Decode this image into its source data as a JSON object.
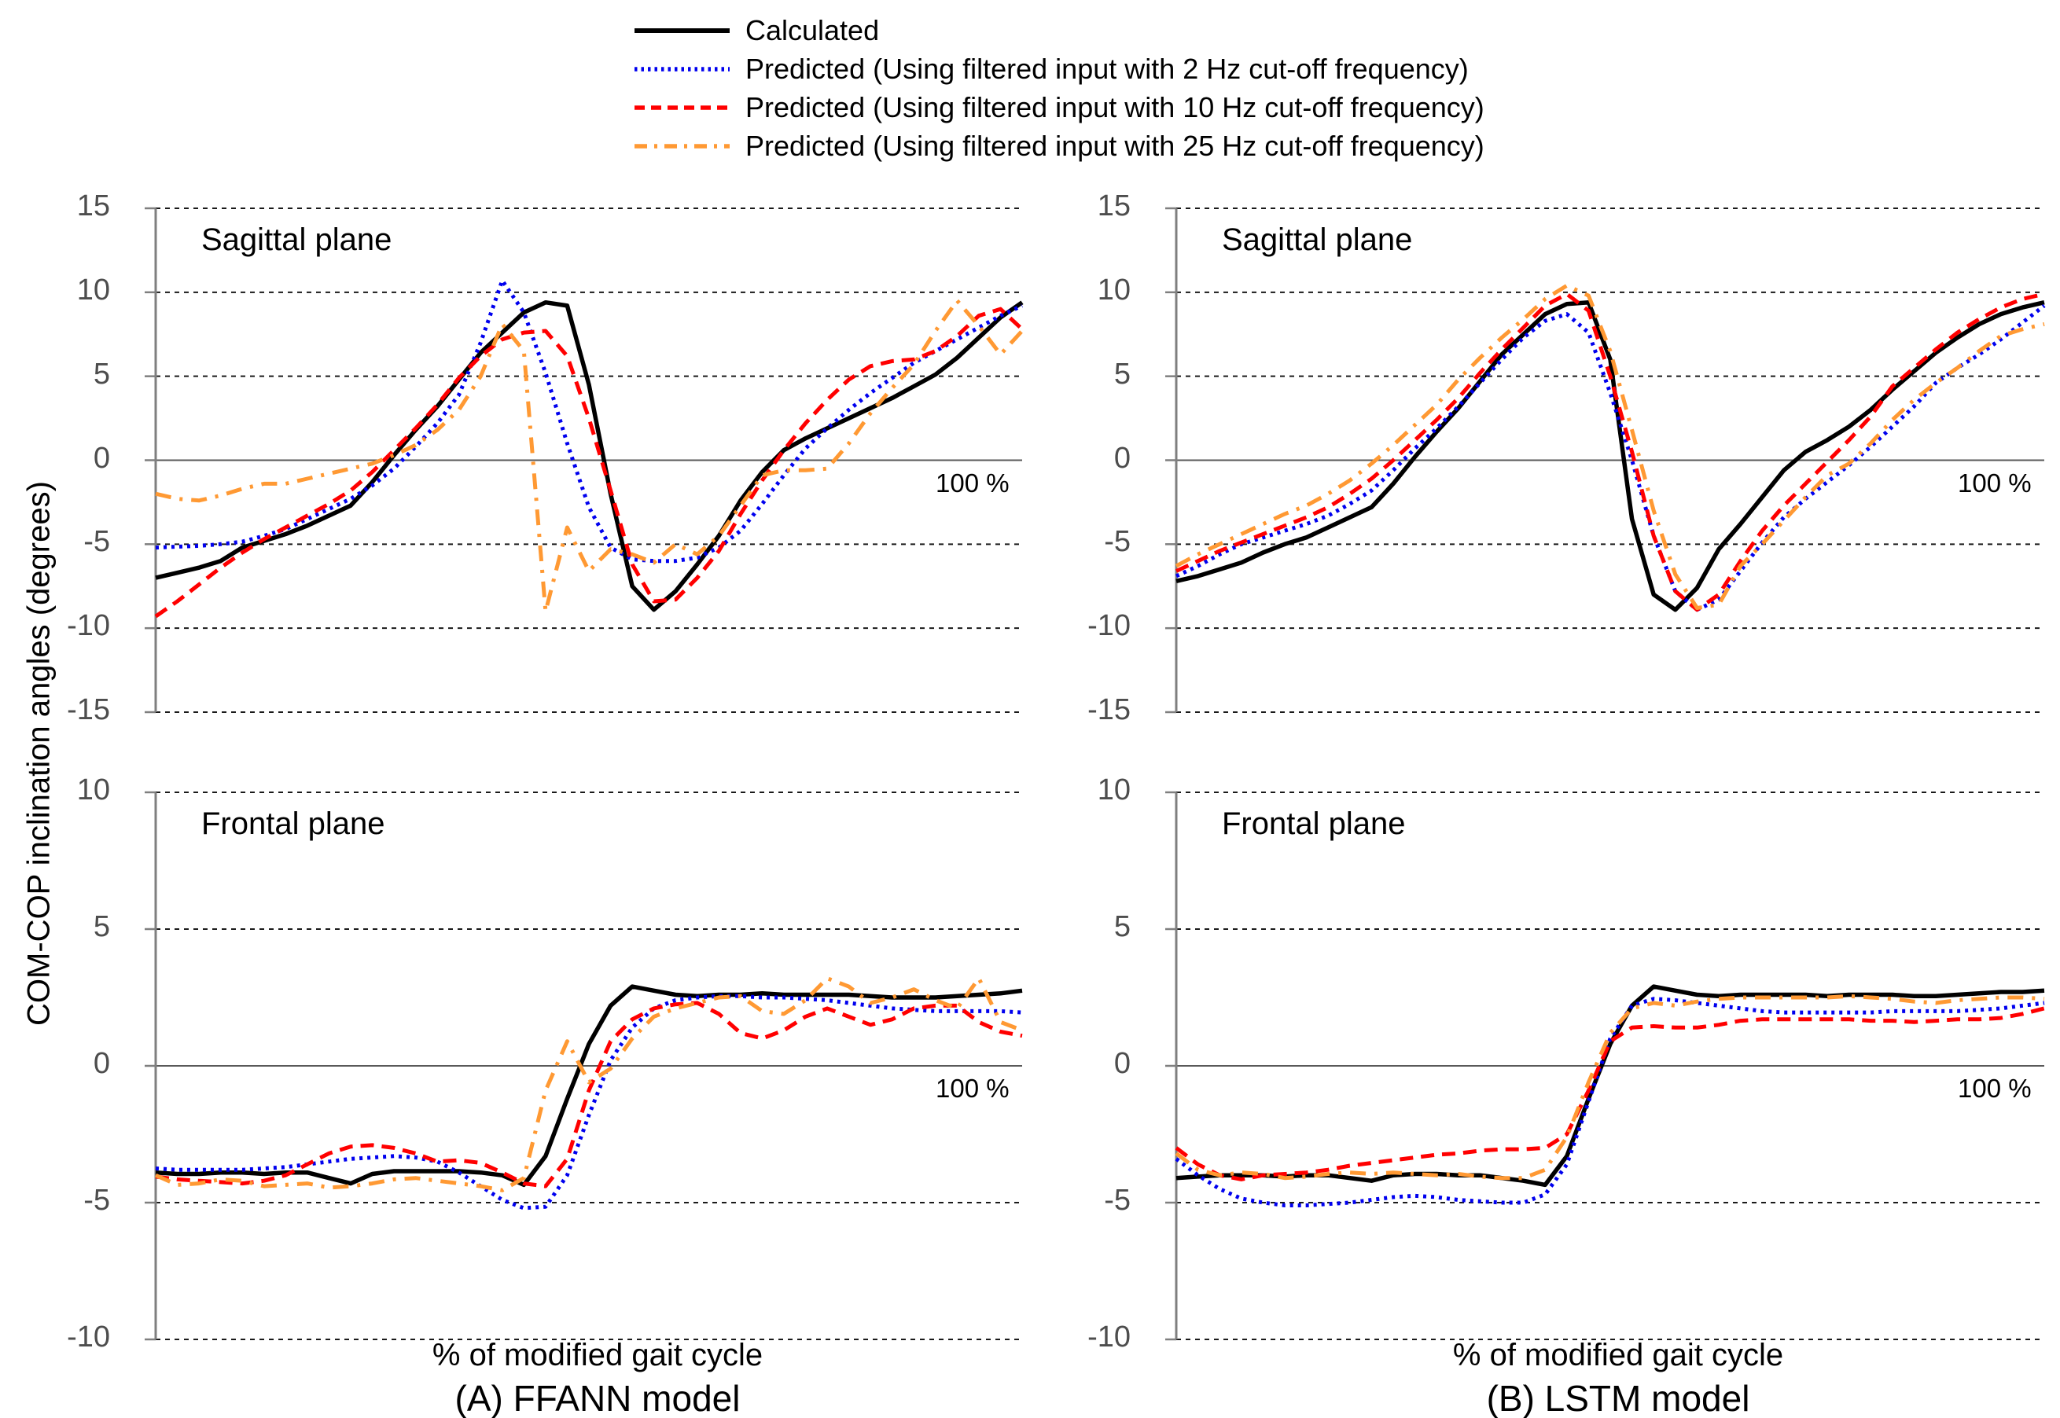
{
  "figure": {
    "y_axis_label": "COM-COP inclination angles (degrees)",
    "x_axis_label": "% of modified gait cycle",
    "panel_a_caption": "(A) FFANN model",
    "panel_b_caption": "(B) LSTM model",
    "end_label": "100 %"
  },
  "colors": {
    "calculated": "#000000",
    "predicted_2hz": "#0000ee",
    "predicted_10hz": "#ff0000",
    "predicted_25hz": "#ff9933",
    "axis": "#7f7f7f",
    "gridline": "#1a1a1a",
    "zero_line": "#595959",
    "tick_text": "#4d4d4d"
  },
  "legend": [
    {
      "label": "Calculated",
      "color": "#000000",
      "style": "solid"
    },
    {
      "label": "Predicted (Using filtered input with 2 Hz cut-off frequency)",
      "color": "#0000ee",
      "style": "dotted"
    },
    {
      "label": "Predicted (Using filtered input with 10 Hz cut-off frequency)",
      "color": "#ff0000",
      "style": "dashed"
    },
    {
      "label": "Predicted (Using filtered input with 25 Hz cut-off frequency)",
      "color": "#ff9933",
      "style": "dashdot"
    }
  ],
  "chart_data": {
    "type": "line",
    "x_label": "% of modified gait cycle",
    "x_range_percent": [
      0,
      100
    ],
    "x_percent": [
      0,
      2.5,
      5,
      7.5,
      10,
      12.5,
      15,
      17.5,
      20,
      22.5,
      25,
      27.5,
      30,
      32.5,
      35,
      37.5,
      40,
      42.5,
      45,
      47.5,
      50,
      52.5,
      55,
      57.5,
      60,
      62.5,
      65,
      67.5,
      70,
      72.5,
      75,
      77.5,
      80,
      82.5,
      85,
      87.5,
      90,
      92.5,
      95,
      97.5,
      100
    ],
    "panels": [
      {
        "id": "ffann-sagittal",
        "model": "FFANN",
        "title": "Sagittal plane",
        "ylim": [
          -15,
          15
        ],
        "yticks": [
          15,
          10,
          5,
          0,
          -5,
          -10,
          -15
        ],
        "series": [
          {
            "name": "Calculated",
            "key": "calculated",
            "values": [
              -7.0,
              -6.7,
              -6.4,
              -6.0,
              -5.2,
              -4.8,
              -4.4,
              -3.9,
              -3.3,
              -2.7,
              -1.3,
              0.3,
              1.8,
              3.2,
              4.8,
              6.4,
              7.6,
              8.8,
              9.4,
              9.2,
              4.5,
              -2.0,
              -7.5,
              -8.9,
              -7.8,
              -6.2,
              -4.5,
              -2.4,
              -0.7,
              0.6,
              1.3,
              1.9,
              2.5,
              3.1,
              3.7,
              4.4,
              5.1,
              6.1,
              7.3,
              8.5,
              9.4
            ]
          },
          {
            "name": "Predicted 2 Hz",
            "key": "predicted_2hz",
            "values": [
              -5.2,
              -5.15,
              -5.1,
              -5.0,
              -4.85,
              -4.5,
              -4.1,
              -3.5,
              -2.9,
              -2.3,
              -1.5,
              -0.5,
              0.8,
              2.2,
              3.9,
              7.0,
              10.7,
              8.8,
              5.2,
              1.0,
              -2.8,
              -5.2,
              -5.9,
              -6.0,
              -6.0,
              -5.8,
              -5.2,
              -4.2,
              -2.6,
              -0.9,
              0.7,
              1.9,
              3.0,
              4.0,
              4.9,
              5.8,
              6.5,
              7.2,
              7.9,
              8.6,
              9.2
            ]
          },
          {
            "name": "Predicted 10 Hz",
            "key": "predicted_10hz",
            "values": [
              -9.3,
              -8.4,
              -7.4,
              -6.4,
              -5.5,
              -4.7,
              -4.0,
              -3.3,
              -2.6,
              -1.8,
              -0.7,
              0.6,
              1.9,
              3.3,
              4.9,
              6.2,
              7.2,
              7.6,
              7.7,
              6.2,
              2.5,
              -1.8,
              -6.2,
              -8.4,
              -8.3,
              -7.0,
              -5.4,
              -3.2,
              -1.2,
              0.6,
              2.2,
              3.6,
              4.8,
              5.6,
              5.9,
              6.0,
              6.5,
              7.4,
              8.6,
              9.0,
              7.8
            ]
          },
          {
            "name": "Predicted 25 Hz",
            "key": "predicted_25hz",
            "values": [
              -2.0,
              -2.3,
              -2.4,
              -2.1,
              -1.7,
              -1.4,
              -1.4,
              -1.1,
              -0.8,
              -0.5,
              -0.2,
              0.3,
              0.9,
              1.8,
              3.0,
              5.0,
              8.1,
              6.5,
              -9.0,
              -4.0,
              -6.6,
              -5.3,
              -5.6,
              -6.1,
              -5.0,
              -5.6,
              -4.5,
              -2.7,
              -0.9,
              -0.6,
              -0.6,
              -0.5,
              1.0,
              2.8,
              4.3,
              5.7,
              7.7,
              9.5,
              8.0,
              6.3,
              7.7
            ]
          }
        ]
      },
      {
        "id": "lstm-sagittal",
        "model": "LSTM",
        "title": "Sagittal plane",
        "ylim": [
          -15,
          15
        ],
        "yticks": [
          15,
          10,
          5,
          0,
          -5,
          -10,
          -15
        ],
        "series": [
          {
            "name": "Calculated",
            "key": "calculated",
            "values": [
              -7.2,
              -6.9,
              -6.5,
              -6.1,
              -5.5,
              -5.0,
              -4.6,
              -4.0,
              -3.4,
              -2.8,
              -1.4,
              0.2,
              1.7,
              3.1,
              4.7,
              6.3,
              7.5,
              8.7,
              9.3,
              9.4,
              6.0,
              -3.5,
              -8.0,
              -8.9,
              -7.6,
              -5.3,
              -3.8,
              -2.2,
              -0.6,
              0.5,
              1.2,
              2.0,
              3.0,
              4.2,
              5.3,
              6.4,
              7.3,
              8.1,
              8.7,
              9.1,
              9.4
            ]
          },
          {
            "name": "Predicted 2 Hz",
            "key": "predicted_2hz",
            "values": [
              -6.9,
              -6.3,
              -5.6,
              -5.0,
              -4.6,
              -4.2,
              -3.8,
              -3.3,
              -2.6,
              -1.8,
              -0.6,
              0.7,
              1.9,
              3.2,
              4.6,
              6.0,
              7.3,
              8.3,
              8.7,
              7.6,
              4.0,
              0.0,
              -4.5,
              -7.8,
              -8.9,
              -8.3,
              -6.6,
              -4.9,
              -3.4,
              -2.3,
              -1.3,
              -0.3,
              0.8,
              2.0,
              3.2,
              4.6,
              5.5,
              6.3,
              7.2,
              8.2,
              9.2
            ]
          },
          {
            "name": "Predicted 10 Hz",
            "key": "predicted_10hz",
            "values": [
              -6.6,
              -6.0,
              -5.4,
              -4.9,
              -4.4,
              -3.9,
              -3.4,
              -2.8,
              -2.0,
              -1.1,
              0.0,
              1.2,
              2.4,
              3.7,
              5.2,
              6.6,
              7.9,
              9.2,
              9.9,
              8.9,
              5.0,
              0.5,
              -4.5,
              -7.8,
              -8.9,
              -8.0,
              -6.0,
              -4.2,
              -2.7,
              -1.4,
              -0.1,
              1.2,
              2.6,
              4.4,
              5.5,
              6.6,
              7.6,
              8.4,
              9.1,
              9.6,
              9.9
            ]
          },
          {
            "name": "Predicted 25 Hz",
            "key": "predicted_25hz",
            "values": [
              -6.3,
              -5.6,
              -5.0,
              -4.4,
              -3.8,
              -3.2,
              -2.7,
              -2.0,
              -1.2,
              -0.2,
              0.9,
              2.1,
              3.3,
              4.8,
              6.1,
              7.3,
              8.4,
              9.6,
              10.4,
              9.8,
              6.5,
              1.8,
              -3.0,
              -6.8,
              -8.8,
              -8.6,
              -6.3,
              -5.0,
              -3.6,
              -2.2,
              -0.9,
              -0.2,
              1.0,
              2.4,
              3.6,
              4.6,
              5.5,
              6.5,
              7.4,
              7.8,
              8.1
            ]
          }
        ]
      },
      {
        "id": "ffann-frontal",
        "model": "FFANN",
        "title": "Frontal plane",
        "ylim": [
          -10,
          10
        ],
        "yticks": [
          10,
          5,
          0,
          -5,
          -10
        ],
        "series": [
          {
            "name": "Calculated",
            "key": "calculated",
            "values": [
              -3.9,
              -3.95,
              -3.95,
              -3.9,
              -3.9,
              -3.95,
              -3.9,
              -3.9,
              -4.1,
              -4.3,
              -3.95,
              -3.85,
              -3.85,
              -3.85,
              -3.85,
              -3.9,
              -4.0,
              -4.35,
              -3.3,
              -1.2,
              0.8,
              2.2,
              2.9,
              2.75,
              2.6,
              2.55,
              2.6,
              2.6,
              2.65,
              2.6,
              2.6,
              2.6,
              2.6,
              2.55,
              2.5,
              2.5,
              2.5,
              2.55,
              2.6,
              2.65,
              2.75
            ]
          },
          {
            "name": "Predicted 2 Hz",
            "key": "predicted_2hz",
            "values": [
              -3.75,
              -3.8,
              -3.8,
              -3.8,
              -3.8,
              -3.75,
              -3.7,
              -3.6,
              -3.5,
              -3.4,
              -3.35,
              -3.3,
              -3.35,
              -3.5,
              -3.9,
              -4.4,
              -4.9,
              -5.2,
              -5.15,
              -4.0,
              -1.8,
              0.2,
              1.4,
              2.1,
              2.4,
              2.5,
              2.55,
              2.55,
              2.5,
              2.5,
              2.45,
              2.4,
              2.3,
              2.2,
              2.1,
              2.05,
              2.0,
              2.0,
              2.0,
              2.0,
              1.95
            ]
          },
          {
            "name": "Predicted 10 Hz",
            "key": "predicted_10hz",
            "values": [
              -4.05,
              -4.15,
              -4.2,
              -4.25,
              -4.3,
              -4.2,
              -4.0,
              -3.6,
              -3.2,
              -2.95,
              -2.9,
              -3.0,
              -3.2,
              -3.5,
              -3.45,
              -3.55,
              -3.9,
              -4.3,
              -4.4,
              -3.4,
              -0.9,
              0.9,
              1.7,
              2.1,
              2.25,
              2.3,
              1.9,
              1.2,
              1.0,
              1.3,
              1.8,
              2.1,
              1.8,
              1.5,
              1.7,
              2.1,
              2.2,
              2.2,
              1.6,
              1.25,
              1.1
            ]
          },
          {
            "name": "Predicted 25 Hz",
            "key": "predicted_25hz",
            "values": [
              -4.0,
              -4.35,
              -4.3,
              -4.15,
              -4.2,
              -4.4,
              -4.35,
              -4.3,
              -4.45,
              -4.4,
              -4.3,
              -4.15,
              -4.1,
              -4.2,
              -4.3,
              -4.4,
              -4.55,
              -4.1,
              -0.9,
              0.9,
              -0.6,
              -0.1,
              1.0,
              1.8,
              2.1,
              2.3,
              2.5,
              2.55,
              2.0,
              1.9,
              2.4,
              3.2,
              2.9,
              2.3,
              2.5,
              2.8,
              2.4,
              2.1,
              3.2,
              1.6,
              1.3
            ]
          }
        ]
      },
      {
        "id": "lstm-frontal",
        "model": "LSTM",
        "title": "Frontal plane",
        "ylim": [
          -10,
          10
        ],
        "yticks": [
          10,
          5,
          0,
          -5,
          -10
        ],
        "series": [
          {
            "name": "Calculated",
            "key": "calculated",
            "values": [
              -4.1,
              -4.05,
              -4.0,
              -4.0,
              -4.0,
              -4.05,
              -4.0,
              -4.0,
              -4.1,
              -4.2,
              -4.0,
              -3.95,
              -3.95,
              -4.0,
              -4.0,
              -4.1,
              -4.2,
              -4.35,
              -3.3,
              -1.2,
              0.8,
              2.2,
              2.9,
              2.75,
              2.6,
              2.55,
              2.6,
              2.6,
              2.6,
              2.6,
              2.55,
              2.6,
              2.6,
              2.6,
              2.55,
              2.55,
              2.6,
              2.65,
              2.7,
              2.7,
              2.75
            ]
          },
          {
            "name": "Predicted 2 Hz",
            "key": "predicted_2hz",
            "values": [
              -3.4,
              -4.0,
              -4.5,
              -4.85,
              -5.0,
              -5.1,
              -5.1,
              -5.05,
              -5.0,
              -4.9,
              -4.8,
              -4.75,
              -4.8,
              -4.9,
              -4.95,
              -5.0,
              -5.0,
              -4.7,
              -3.6,
              -1.3,
              1.0,
              2.2,
              2.45,
              2.4,
              2.3,
              2.2,
              2.1,
              2.0,
              1.95,
              1.95,
              1.95,
              1.95,
              1.95,
              2.0,
              2.0,
              2.0,
              2.0,
              2.05,
              2.1,
              2.2,
              2.3
            ]
          },
          {
            "name": "Predicted 10 Hz",
            "key": "predicted_10hz",
            "values": [
              -3.0,
              -3.6,
              -4.0,
              -4.15,
              -4.0,
              -3.95,
              -3.9,
              -3.8,
              -3.65,
              -3.55,
              -3.45,
              -3.35,
              -3.25,
              -3.2,
              -3.1,
              -3.05,
              -3.05,
              -3.0,
              -2.5,
              -0.9,
              0.9,
              1.4,
              1.45,
              1.4,
              1.4,
              1.5,
              1.65,
              1.7,
              1.7,
              1.7,
              1.7,
              1.7,
              1.65,
              1.65,
              1.6,
              1.65,
              1.7,
              1.7,
              1.75,
              1.9,
              2.1
            ]
          },
          {
            "name": "Predicted 25 Hz",
            "key": "predicted_25hz",
            "values": [
              -3.2,
              -3.8,
              -4.0,
              -3.9,
              -3.95,
              -4.1,
              -4.05,
              -3.95,
              -3.9,
              -3.95,
              -3.9,
              -3.95,
              -4.0,
              -3.95,
              -4.05,
              -4.1,
              -4.1,
              -3.8,
              -2.6,
              -0.6,
              1.2,
              2.1,
              2.3,
              2.2,
              2.35,
              2.45,
              2.5,
              2.5,
              2.5,
              2.5,
              2.5,
              2.55,
              2.5,
              2.45,
              2.35,
              2.3,
              2.4,
              2.45,
              2.5,
              2.5,
              2.45
            ]
          }
        ]
      }
    ]
  }
}
